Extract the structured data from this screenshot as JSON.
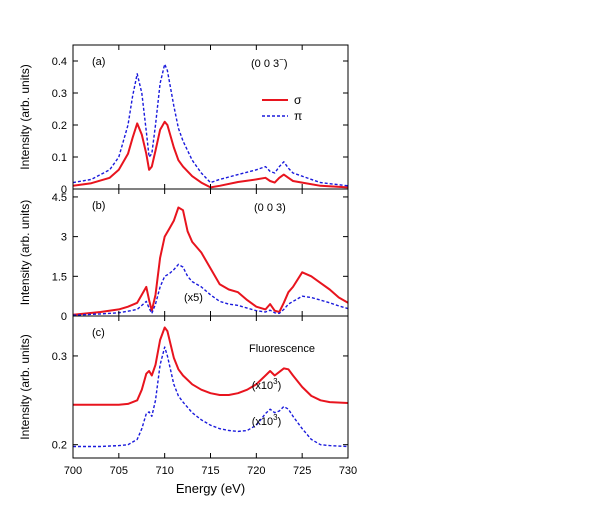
{
  "chart_data": {
    "type": "line",
    "xlabel": "Energy (eV)",
    "xlim": [
      700,
      730
    ],
    "xticks": [
      700,
      705,
      710,
      715,
      720,
      725,
      730
    ],
    "legend": {
      "placement": "top-right, panel (a)",
      "entries": [
        "σ",
        "π"
      ]
    },
    "colors": {
      "sigma": "#e8141e",
      "pi": "#1a1adc"
    },
    "panels": [
      {
        "panel_label": "(a)",
        "reflection_label": "(0 0 3",
        "reflection_superscript": "−",
        "reflection_close": ")",
        "ylabel": "Intensity (arb. units)",
        "ylim": [
          0,
          0.45
        ],
        "yticks": [
          0,
          0.1,
          0.2,
          0.3,
          0.4
        ],
        "ytick_labels": [
          "0",
          "0.1",
          "0.2",
          "0.3",
          "0.4"
        ],
        "series": [
          {
            "name": "σ",
            "key": "sigma",
            "style": "solid",
            "x": [
              700,
              702,
              704,
              705,
              706,
              706.5,
              707,
              707.5,
              708,
              708.3,
              708.6,
              709,
              709.5,
              710,
              710.3,
              711,
              711.5,
              712,
              713,
              714,
              715,
              716,
              718,
              720,
              721,
              721.5,
              722,
              722.5,
              723,
              723.5,
              724,
              725,
              727,
              730
            ],
            "y": [
              0.01,
              0.018,
              0.035,
              0.06,
              0.11,
              0.16,
              0.205,
              0.17,
              0.11,
              0.06,
              0.07,
              0.12,
              0.185,
              0.21,
              0.2,
              0.13,
              0.09,
              0.07,
              0.04,
              0.02,
              0.005,
              0.01,
              0.022,
              0.03,
              0.035,
              0.025,
              0.02,
              0.035,
              0.045,
              0.035,
              0.025,
              0.02,
              0.01,
              0.005
            ]
          },
          {
            "name": "π",
            "key": "pi",
            "style": "dashed",
            "x": [
              700,
              702,
              704,
              705,
              706,
              706.5,
              707,
              707.5,
              708,
              708.3,
              708.6,
              709,
              709.5,
              710,
              710.3,
              711,
              711.5,
              712,
              713,
              714,
              715,
              716,
              718,
              720,
              721,
              721.5,
              722,
              722.5,
              723,
              723.5,
              724,
              725,
              727,
              730
            ],
            "y": [
              0.02,
              0.03,
              0.06,
              0.1,
              0.2,
              0.29,
              0.36,
              0.3,
              0.18,
              0.1,
              0.11,
              0.2,
              0.33,
              0.39,
              0.37,
              0.26,
              0.19,
              0.15,
              0.09,
              0.05,
              0.02,
              0.03,
              0.045,
              0.06,
              0.07,
              0.055,
              0.05,
              0.07,
              0.085,
              0.065,
              0.05,
              0.04,
              0.02,
              0.01
            ]
          }
        ]
      },
      {
        "panel_label": "(b)",
        "reflection_label": "(0 0 3)",
        "annotation": "(x5)",
        "ylabel": "Intensity (arb. units)",
        "ylim": [
          0,
          4.8
        ],
        "yticks": [
          0,
          1.5,
          3,
          4.5
        ],
        "ytick_labels": [
          "0",
          "1.5",
          "3",
          "4.5"
        ],
        "series": [
          {
            "name": "σ",
            "key": "sigma",
            "style": "solid",
            "x": [
              700,
              703,
              705,
              706,
              707,
              707.5,
              708,
              708.3,
              708.6,
              709,
              709.5,
              710,
              710.5,
              711,
              711.5,
              712,
              712.5,
              713,
              714,
              715,
              716,
              717,
              718,
              719,
              720,
              721,
              721.5,
              722,
              722.5,
              723,
              723.5,
              724,
              725,
              726,
              727,
              728,
              729,
              730
            ],
            "y": [
              0.05,
              0.15,
              0.25,
              0.35,
              0.5,
              0.8,
              1.1,
              0.6,
              0.2,
              0.8,
              2.2,
              3.0,
              3.3,
              3.6,
              4.1,
              4.0,
              3.2,
              2.8,
              2.4,
              1.8,
              1.2,
              1.0,
              0.9,
              0.6,
              0.35,
              0.25,
              0.45,
              0.2,
              0.15,
              0.5,
              0.9,
              1.1,
              1.65,
              1.5,
              1.25,
              1.0,
              0.7,
              0.5
            ]
          },
          {
            "name": "π",
            "key": "pi",
            "style": "dashed",
            "x": [
              700,
              703,
              705,
              706,
              707,
              707.5,
              708,
              708.3,
              708.6,
              709,
              709.5,
              710,
              710.5,
              711,
              711.5,
              712,
              712.5,
              713,
              714,
              715,
              716,
              717,
              718,
              719,
              720,
              721,
              721.5,
              722,
              722.5,
              723,
              723.5,
              724,
              725,
              726,
              727,
              728,
              729,
              730
            ],
            "y": [
              0.03,
              0.08,
              0.12,
              0.18,
              0.25,
              0.4,
              0.55,
              0.3,
              0.1,
              0.45,
              1.1,
              1.5,
              1.6,
              1.75,
              1.95,
              1.85,
              1.5,
              1.3,
              1.1,
              0.8,
              0.55,
              0.45,
              0.4,
              0.3,
              0.2,
              0.15,
              0.22,
              0.12,
              0.1,
              0.25,
              0.45,
              0.55,
              0.75,
              0.7,
              0.6,
              0.5,
              0.38,
              0.28
            ]
          }
        ]
      },
      {
        "panel_label": "(c)",
        "reflection_label": "Fluorescence",
        "ylabel": "Intensity (arb. units)",
        "ylim": [
          0.185,
          0.345
        ],
        "yticks": [
          0.2,
          0.3
        ],
        "ytick_labels": [
          "0.2",
          "0.3"
        ],
        "series_annotations": [
          {
            "key": "sigma",
            "text": "(x10",
            "sup": "3",
            "close": ")",
            "at": [
              719.5,
              0.263
            ]
          },
          {
            "key": "pi",
            "text": "(x10",
            "sup": "3",
            "close": ")",
            "at": [
              719.5,
              0.222
            ]
          }
        ],
        "series": [
          {
            "name": "σ",
            "key": "sigma",
            "style": "solid",
            "x": [
              700,
              703,
              705,
              706,
              707,
              707.5,
              708,
              708.3,
              708.6,
              709,
              709.5,
              710,
              710.3,
              711,
              711.5,
              712,
              713,
              714,
              715,
              716,
              717,
              718,
              719,
              720,
              721,
              721.5,
              722,
              722.5,
              723,
              723.5,
              724,
              725,
              726,
              727,
              728,
              730
            ],
            "y": [
              0.245,
              0.245,
              0.245,
              0.246,
              0.25,
              0.262,
              0.28,
              0.283,
              0.278,
              0.29,
              0.318,
              0.332,
              0.328,
              0.298,
              0.285,
              0.278,
              0.268,
              0.262,
              0.258,
              0.256,
              0.256,
              0.258,
              0.262,
              0.268,
              0.278,
              0.283,
              0.278,
              0.282,
              0.286,
              0.285,
              0.278,
              0.265,
              0.255,
              0.25,
              0.248,
              0.247
            ]
          },
          {
            "name": "π",
            "key": "pi",
            "style": "dashed",
            "x": [
              700,
              703,
              705,
              706,
              707,
              707.5,
              708,
              708.3,
              708.6,
              709,
              709.5,
              710,
              710.3,
              711,
              711.5,
              712,
              713,
              714,
              715,
              716,
              717,
              718,
              719,
              720,
              721,
              721.5,
              722,
              722.5,
              723,
              723.5,
              724,
              725,
              726,
              727,
              728,
              730
            ],
            "y": [
              0.198,
              0.198,
              0.199,
              0.2,
              0.206,
              0.218,
              0.235,
              0.237,
              0.232,
              0.25,
              0.29,
              0.31,
              0.3,
              0.268,
              0.255,
              0.248,
              0.236,
              0.228,
              0.222,
              0.218,
              0.216,
              0.215,
              0.216,
              0.222,
              0.235,
              0.24,
              0.236,
              0.238,
              0.243,
              0.24,
              0.232,
              0.218,
              0.206,
              0.2,
              0.199,
              0.198
            ]
          }
        ]
      }
    ]
  }
}
